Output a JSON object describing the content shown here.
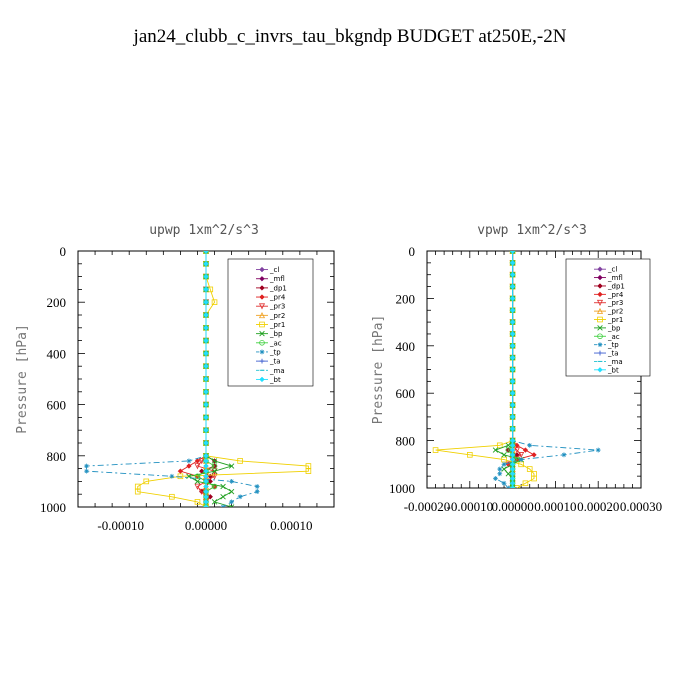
{
  "title": "jan24_clubb_c_invrs_tau_bkgndp  BUDGET at250E,-2N",
  "chart_data": [
    {
      "type": "line",
      "title": "upwp   1xm^2/s^3",
      "xlabel": "",
      "ylabel": "Pressure [hPa]",
      "xlim": [
        -0.00015,
        0.00015
      ],
      "ylim": [
        0,
        1000
      ],
      "y_inverted": true,
      "grid": false,
      "legend_position": "top-right",
      "xticks": [
        -0.0001,
        0,
        0.0001
      ],
      "xtick_labels": [
        "-0.00010",
        "0.00000",
        "0.00010"
      ],
      "yticks": [
        0,
        200,
        400,
        600,
        800,
        1000
      ],
      "ytick_labels": [
        "0",
        "200",
        "400",
        "600",
        "800",
        "1000"
      ],
      "levels": [
        0,
        50,
        100,
        150,
        200,
        250,
        300,
        350,
        400,
        450,
        500,
        550,
        600,
        650,
        700,
        750,
        800,
        820,
        840,
        860,
        880,
        900,
        920,
        940,
        960,
        980,
        1000
      ],
      "series": [
        {
          "name": "_cl",
          "color": "#8040a0",
          "marker": "diamond",
          "dash": "",
          "values": [
            0,
            0,
            0,
            0,
            0,
            0,
            0,
            0,
            0,
            0,
            0,
            0,
            0,
            0,
            0,
            0,
            0,
            0,
            0,
            0,
            0,
            0,
            0,
            0,
            0,
            0,
            0
          ]
        },
        {
          "name": "_mfl",
          "color": "#800060",
          "marker": "diamond",
          "dash": "",
          "values": [
            0,
            0,
            0,
            0,
            0,
            0,
            0,
            0,
            0,
            0,
            0,
            0,
            0,
            0,
            0,
            0,
            0,
            0,
            0,
            0,
            0,
            0,
            0,
            0,
            0,
            0,
            0
          ]
        },
        {
          "name": "_dp1",
          "color": "#a00020",
          "marker": "diamond",
          "dash": "",
          "values": [
            0,
            0,
            0,
            0,
            0,
            0,
            0,
            0,
            0,
            0,
            0,
            0,
            0,
            0,
            0,
            0,
            0,
            1e-05,
            1e-05,
            -5e-06,
            5e-06,
            5e-06,
            0,
            -5e-06,
            5e-06,
            0,
            0
          ]
        },
        {
          "name": "_pr4",
          "color": "#e02020",
          "marker": "diamond",
          "dash": "",
          "values": [
            0,
            0,
            0,
            0,
            0,
            0,
            0,
            0,
            0,
            0,
            0,
            0,
            0,
            0,
            0,
            0,
            0,
            -1e-05,
            -2e-05,
            -3e-05,
            -1e-05,
            0,
            1e-05,
            0,
            0,
            0,
            0
          ]
        },
        {
          "name": "_pr3",
          "color": "#e03030",
          "marker": "triangle-down",
          "dash": "",
          "values": [
            0,
            0,
            0,
            0,
            0,
            0,
            0,
            0,
            0,
            0,
            0,
            0,
            0,
            0,
            0,
            0,
            0,
            -5e-06,
            -1e-05,
            1e-05,
            1e-05,
            0,
            -1e-05,
            -5e-06,
            0,
            0,
            0
          ]
        },
        {
          "name": "_pr2",
          "color": "#f0a020",
          "marker": "triangle",
          "dash": "",
          "values": [
            0,
            0,
            0,
            0,
            0,
            0,
            0,
            0,
            0,
            0,
            0,
            0,
            0,
            0,
            0,
            0,
            0,
            0,
            0,
            0,
            0,
            0,
            0,
            0,
            0,
            0,
            0
          ]
        },
        {
          "name": "_pr1",
          "color": "#f0d000",
          "marker": "square",
          "dash": "",
          "values": [
            0,
            0,
            0,
            5e-06,
            1e-05,
            0,
            0,
            0,
            0,
            0,
            0,
            0,
            0,
            0,
            0,
            0,
            0,
            4e-05,
            0.00012,
            0.00012,
            -3e-05,
            -7e-05,
            -8e-05,
            -8e-05,
            -4e-05,
            -1e-05,
            0
          ]
        },
        {
          "name": "_bp",
          "color": "#20a020",
          "marker": "x",
          "dash": "",
          "values": [
            0,
            0,
            0,
            0,
            0,
            0,
            0,
            0,
            0,
            0,
            0,
            0,
            0,
            0,
            0,
            0,
            0,
            1e-05,
            3e-05,
            1e-05,
            -2e-05,
            -1e-05,
            2e-05,
            3e-05,
            2e-05,
            1e-05,
            3e-05
          ]
        },
        {
          "name": "_ac",
          "color": "#40d040",
          "marker": "circle",
          "dash": "",
          "values": [
            0,
            0,
            0,
            0,
            0,
            0,
            0,
            0,
            0,
            0,
            0,
            0,
            0,
            0,
            0,
            0,
            0,
            0,
            1e-05,
            0,
            -1e-05,
            0,
            1e-05,
            0,
            0,
            0,
            0
          ]
        },
        {
          "name": "_tp",
          "color": "#2090c0",
          "marker": "star",
          "dash": "6,3,2,3",
          "values": [
            0,
            0,
            0,
            0,
            0,
            0,
            0,
            0,
            0,
            0,
            0,
            0,
            0,
            0,
            0,
            0,
            0,
            -2e-05,
            -0.00014,
            -0.00014,
            -4e-05,
            3e-05,
            6e-05,
            6e-05,
            4e-05,
            3e-05,
            2e-05
          ]
        },
        {
          "name": "_ta",
          "color": "#4060d0",
          "marker": "plus",
          "dash": "",
          "values": [
            0,
            0,
            0,
            0,
            0,
            0,
            0,
            0,
            0,
            0,
            0,
            0,
            0,
            0,
            0,
            0,
            0,
            0,
            0,
            0,
            0,
            0,
            0,
            0,
            0,
            0,
            0
          ]
        },
        {
          "name": "_ma",
          "color": "#20c0d0",
          "marker": "dash",
          "dash": "4,3",
          "values": [
            0,
            0,
            0,
            0,
            0,
            0,
            0,
            0,
            0,
            0,
            0,
            0,
            0,
            0,
            0,
            0,
            0,
            0,
            0,
            0,
            0,
            0,
            0,
            0,
            0,
            0,
            0
          ]
        },
        {
          "name": "_bt",
          "color": "#20e0ff",
          "marker": "diamond",
          "dash": "",
          "values": [
            0,
            0,
            0,
            0,
            0,
            0,
            0,
            0,
            0,
            0,
            0,
            0,
            0,
            0,
            0,
            0,
            0,
            0,
            0,
            0,
            0,
            0,
            0,
            0,
            0,
            0,
            0
          ]
        }
      ]
    },
    {
      "type": "line",
      "title": "vpwp   1xm^2/s^3",
      "xlabel": "",
      "ylabel": "Pressure [hPa]",
      "xlim": [
        -0.0002,
        0.0003
      ],
      "ylim": [
        0,
        1000
      ],
      "y_inverted": true,
      "grid": false,
      "legend_position": "top-right",
      "xticks": [
        -0.0002,
        -0.0001,
        0,
        0.0001,
        0.0002,
        0.0003
      ],
      "xtick_labels": [
        "-0.00020",
        "-0.00010",
        "0.00000",
        "0.00010",
        "0.00020",
        "0.00030"
      ],
      "yticks": [
        0,
        200,
        400,
        600,
        800,
        1000
      ],
      "ytick_labels": [
        "0",
        "200",
        "400",
        "600",
        "800",
        "1000"
      ],
      "levels": [
        0,
        50,
        100,
        150,
        200,
        250,
        300,
        350,
        400,
        450,
        500,
        550,
        600,
        650,
        700,
        750,
        800,
        820,
        840,
        860,
        880,
        900,
        920,
        940,
        960,
        980,
        1000
      ],
      "series": [
        {
          "name": "_cl",
          "color": "#8040a0",
          "marker": "diamond",
          "dash": "",
          "values": [
            0,
            0,
            0,
            0,
            0,
            0,
            0,
            0,
            0,
            0,
            0,
            0,
            0,
            0,
            0,
            0,
            0,
            0,
            0,
            0,
            0,
            0,
            0,
            0,
            0,
            0,
            0
          ]
        },
        {
          "name": "_mfl",
          "color": "#800060",
          "marker": "diamond",
          "dash": "",
          "values": [
            0,
            0,
            0,
            0,
            0,
            0,
            0,
            0,
            0,
            0,
            0,
            0,
            0,
            0,
            0,
            0,
            0,
            0,
            0,
            0,
            0,
            0,
            0,
            0,
            0,
            0,
            0
          ]
        },
        {
          "name": "_dp1",
          "color": "#a00020",
          "marker": "diamond",
          "dash": "",
          "values": [
            0,
            0,
            0,
            0,
            0,
            0,
            0,
            0,
            0,
            0,
            0,
            0,
            0,
            0,
            0,
            0,
            0,
            0,
            -1e-05,
            1e-05,
            0,
            0,
            0,
            0,
            0,
            0,
            0
          ]
        },
        {
          "name": "_pr4",
          "color": "#e02020",
          "marker": "diamond",
          "dash": "",
          "values": [
            0,
            0,
            0,
            0,
            0,
            0,
            0,
            0,
            0,
            0,
            0,
            0,
            0,
            0,
            0,
            0,
            0,
            1e-05,
            3e-05,
            5e-05,
            1e-05,
            -1e-05,
            0,
            0,
            0,
            0,
            0
          ]
        },
        {
          "name": "_pr3",
          "color": "#e03030",
          "marker": "triangle-down",
          "dash": "",
          "values": [
            0,
            0,
            0,
            0,
            0,
            0,
            0,
            0,
            0,
            0,
            0,
            0,
            0,
            0,
            0,
            0,
            0,
            0,
            1e-05,
            2e-05,
            0,
            -1e-05,
            0,
            0,
            0,
            0,
            0
          ]
        },
        {
          "name": "_pr2",
          "color": "#f0a020",
          "marker": "triangle",
          "dash": "",
          "values": [
            0,
            0,
            0,
            0,
            0,
            0,
            0,
            0,
            0,
            0,
            0,
            0,
            0,
            0,
            0,
            0,
            0,
            0,
            0,
            0,
            0,
            0,
            0,
            0,
            0,
            0,
            0
          ]
        },
        {
          "name": "_pr1",
          "color": "#f0d000",
          "marker": "square",
          "dash": "",
          "values": [
            0,
            0,
            0,
            0,
            0,
            0,
            0,
            0,
            0,
            0,
            0,
            0,
            0,
            0,
            0,
            0,
            0,
            -3e-05,
            -0.00018,
            -0.0001,
            -2e-05,
            2e-05,
            4e-05,
            5e-05,
            5e-05,
            3e-05,
            1e-05
          ]
        },
        {
          "name": "_bp",
          "color": "#20a020",
          "marker": "x",
          "dash": "",
          "values": [
            0,
            0,
            0,
            0,
            0,
            0,
            0,
            0,
            0,
            0,
            0,
            0,
            0,
            0,
            0,
            0,
            0,
            -1e-05,
            -4e-05,
            -2e-05,
            2e-05,
            0,
            -2e-05,
            -1e-05,
            0,
            0,
            0
          ]
        },
        {
          "name": "_ac",
          "color": "#40d040",
          "marker": "circle",
          "dash": "",
          "values": [
            0,
            0,
            0,
            0,
            0,
            0,
            0,
            0,
            0,
            0,
            0,
            0,
            0,
            0,
            0,
            0,
            0,
            0,
            -1e-05,
            0,
            1e-05,
            0,
            0,
            0,
            0,
            0,
            0
          ]
        },
        {
          "name": "_tp",
          "color": "#2090c0",
          "marker": "star",
          "dash": "6,3,2,3",
          "values": [
            0,
            0,
            0,
            0,
            0,
            0,
            0,
            0,
            0,
            0,
            0,
            0,
            0,
            0,
            0,
            0,
            0,
            4e-05,
            0.0002,
            0.00012,
            2e-05,
            -2e-05,
            -3e-05,
            -3e-05,
            -4e-05,
            -2e-05,
            -1e-05
          ]
        },
        {
          "name": "_ta",
          "color": "#4060d0",
          "marker": "plus",
          "dash": "",
          "values": [
            0,
            0,
            0,
            0,
            0,
            0,
            0,
            0,
            0,
            0,
            0,
            0,
            0,
            0,
            0,
            0,
            0,
            0,
            0,
            0,
            0,
            0,
            0,
            0,
            0,
            0,
            0
          ]
        },
        {
          "name": "_ma",
          "color": "#20c0d0",
          "marker": "dash",
          "dash": "4,3",
          "values": [
            0,
            0,
            0,
            0,
            0,
            0,
            0,
            0,
            0,
            0,
            0,
            0,
            0,
            0,
            0,
            0,
            0,
            0,
            0,
            0,
            0,
            0,
            0,
            0,
            0,
            0,
            0
          ]
        },
        {
          "name": "_bt",
          "color": "#20e0ff",
          "marker": "diamond",
          "dash": "",
          "values": [
            0,
            0,
            0,
            0,
            0,
            0,
            0,
            0,
            0,
            0,
            0,
            0,
            0,
            0,
            0,
            0,
            0,
            0,
            0,
            0,
            0,
            0,
            0,
            0,
            0,
            0,
            0
          ]
        }
      ]
    }
  ]
}
